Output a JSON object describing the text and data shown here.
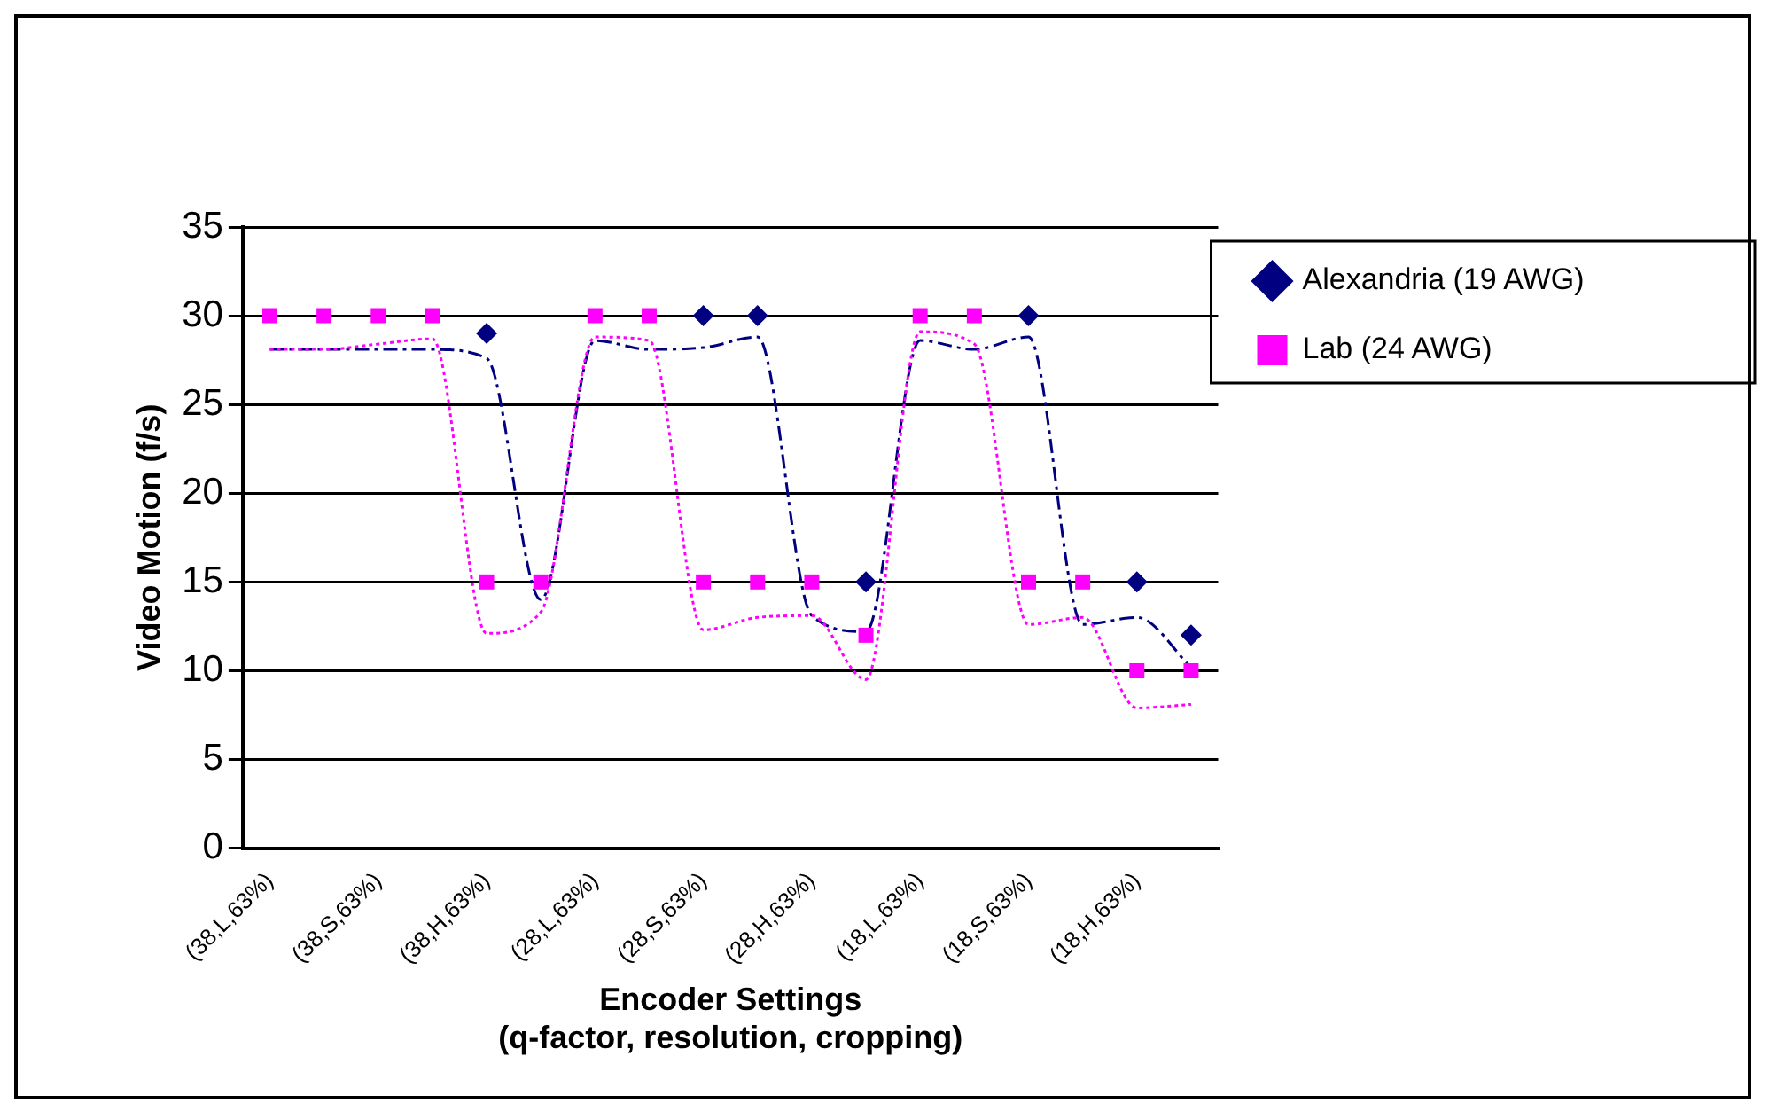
{
  "chart_data": {
    "type": "line",
    "xlabel": "Encoder Settings\n(q-factor, resolution, cropping)",
    "ylabel": "Video Motion (f/s)",
    "categories": [
      "(38,L,63%)",
      null,
      "(38,S,63%)",
      null,
      "(38,H,63%)",
      null,
      "(28,L,63%)",
      null,
      "(28,S,63%)",
      null,
      "(28,H,63%)",
      null,
      "(18,L,63%)",
      null,
      "(18,S,63%)",
      null,
      "(18,H,63%)",
      null
    ],
    "series": [
      {
        "name": "Alexandria (19 AWG)",
        "type": "scatter",
        "marker": "diamond",
        "color": "#000080",
        "values": [
          null,
          null,
          null,
          null,
          29,
          null,
          null,
          null,
          30,
          30,
          null,
          15,
          null,
          null,
          30,
          null,
          15,
          12
        ]
      },
      {
        "name": "Lab (24 AWG)",
        "type": "scatter",
        "marker": "square",
        "color": "#ff00ff",
        "values": [
          30,
          30,
          30,
          30,
          15,
          15,
          30,
          30,
          15,
          15,
          15,
          12,
          30,
          30,
          15,
          15,
          10,
          10
        ]
      },
      {
        "line_style": "dashed",
        "marker": "none",
        "color": "#000080",
        "values": [
          28.1,
          28.1,
          28.1,
          28.1,
          27.6,
          14,
          28.6,
          28.1,
          28.2,
          28.8,
          13.1,
          12.2,
          28.6,
          28.1,
          28.8,
          12.6,
          13,
          10.2
        ]
      },
      {
        "line_style": "dotted",
        "marker": "none",
        "color": "#ff00ff",
        "values": [
          28.1,
          28.1,
          28.4,
          28.7,
          12.1,
          13.3,
          28.8,
          28.6,
          12.3,
          13,
          13.1,
          9.5,
          29.1,
          28.4,
          12.6,
          13,
          7.9,
          8.1
        ]
      }
    ],
    "ylim": [
      0,
      35
    ],
    "yticks": [
      0,
      5,
      10,
      15,
      20,
      25,
      30,
      35
    ],
    "grid": "y",
    "legend": "right"
  }
}
